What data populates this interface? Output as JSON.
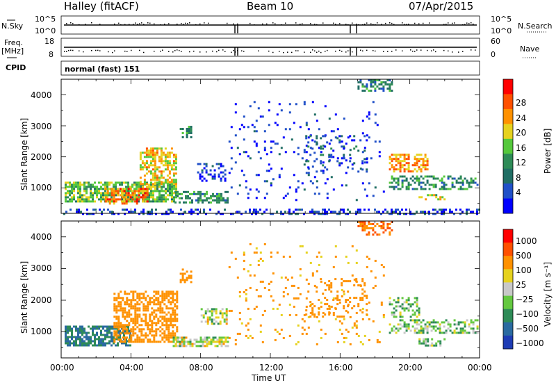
{
  "header": {
    "station": "Halley (fitACF)",
    "beam": "Beam 10",
    "date": "07/Apr/2015"
  },
  "strip_labels": {
    "nsky": "N.Sky",
    "nsky_ticks": [
      "10^5",
      "10^0"
    ],
    "nsearch": "N.Search",
    "nsearch_ticks": [
      "10^5",
      "10^0"
    ],
    "freq": "Freq.",
    "freq_unit": "[MHz]",
    "freq_ticks": [
      "18",
      "8"
    ],
    "nave": "Nave",
    "nave_ticks": [
      "60",
      "0"
    ],
    "cpid": "CPID",
    "cpid_value": "normal (fast) 151"
  },
  "chart_data": [
    {
      "type": "heatmap",
      "panel": "power",
      "ylabel": "Slant Range [km]",
      "yticks": [
        "1000",
        "2000",
        "3000",
        "4000"
      ],
      "ylim": [
        180,
        4500
      ],
      "xticks": [
        "00:00",
        "04:00",
        "08:00",
        "12:00",
        "16:00",
        "20:00",
        "00:00"
      ],
      "xlim_hours": [
        0,
        24
      ],
      "colorbar_label": "Power [dB]",
      "colorbar_ticks": [
        "4",
        "8",
        "12",
        "16",
        "20",
        "24",
        "28"
      ],
      "colorbar_colors": [
        "#0000ff",
        "#2050c8",
        "#206e64",
        "#2e8b57",
        "#55c83c",
        "#e6d21e",
        "#ff9100",
        "#ff5000",
        "#ff0000"
      ],
      "regions": [
        {
          "h0": 0.2,
          "h1": 6.6,
          "r0": 550,
          "r1": 1200,
          "v": 17,
          "d": 0.75
        },
        {
          "h0": 4.5,
          "h1": 6.6,
          "r0": 1100,
          "r1": 2300,
          "v": 22,
          "d": 0.6
        },
        {
          "h0": 2.5,
          "h1": 5.0,
          "r0": 500,
          "r1": 1000,
          "v": 27,
          "d": 0.6
        },
        {
          "h0": 6.5,
          "h1": 9.6,
          "r0": 550,
          "r1": 900,
          "v": 13,
          "d": 0.55
        },
        {
          "h0": 6.8,
          "h1": 7.4,
          "r0": 2600,
          "r1": 3000,
          "v": 14,
          "d": 0.5
        },
        {
          "h0": 7.8,
          "h1": 9.4,
          "r0": 1250,
          "r1": 1800,
          "v": 6,
          "d": 0.3
        },
        {
          "h0": 9.6,
          "h1": 18.5,
          "r0": 600,
          "r1": 3800,
          "v": 5,
          "d": 0.06
        },
        {
          "h0": 14.0,
          "h1": 17.5,
          "r0": 1500,
          "r1": 2700,
          "v": 9,
          "d": 0.15
        },
        {
          "h0": 17.0,
          "h1": 19.0,
          "r0": 4100,
          "r1": 4500,
          "v": 12,
          "d": 0.45
        },
        {
          "h0": 18.8,
          "h1": 21.0,
          "r0": 1500,
          "r1": 2100,
          "v": 25,
          "d": 0.55
        },
        {
          "h0": 18.8,
          "h1": 23.9,
          "r0": 950,
          "r1": 1400,
          "v": 13,
          "d": 0.45
        },
        {
          "h0": 20.5,
          "h1": 22.0,
          "r0": 600,
          "r1": 800,
          "v": 20,
          "d": 0.5
        },
        {
          "h0": 0.0,
          "h1": 24.0,
          "r0": 180,
          "r1": 330,
          "v": 6,
          "d": 0.35
        }
      ]
    },
    {
      "type": "heatmap",
      "panel": "velocity",
      "ylabel": "Slant Range [km]",
      "yticks": [
        "1000",
        "2000",
        "3000",
        "4000"
      ],
      "ylim": [
        180,
        4500
      ],
      "xticks": [
        "00:00",
        "04:00",
        "08:00",
        "12:00",
        "16:00",
        "20:00",
        "00:00"
      ],
      "xlim_hours": [
        0,
        24
      ],
      "xlabel": "Time UT",
      "colorbar_label": "Velocity [m s⁻¹]",
      "colorbar_ticks": [
        "1000",
        "500",
        "100",
        "25",
        "−25",
        "−100",
        "−500",
        "−1000"
      ],
      "colorbar_colors": [
        "#1e3cb4",
        "#2a6aa0",
        "#2e8b57",
        "#64c840",
        "#c8c8c8",
        "#e6d21e",
        "#ff9100",
        "#ff5000",
        "#ff0000"
      ],
      "regions": [
        {
          "h0": 0.2,
          "h1": 4.0,
          "r0": 550,
          "r1": 1200,
          "v": 500,
          "d": 0.7
        },
        {
          "h0": 3.0,
          "h1": 6.6,
          "r0": 700,
          "r1": 2300,
          "v": -300,
          "d": 0.6
        },
        {
          "h0": 6.4,
          "h1": 9.6,
          "r0": 550,
          "r1": 850,
          "v": 0,
          "d": 0.7
        },
        {
          "h0": 6.8,
          "h1": 7.4,
          "r0": 2600,
          "r1": 3000,
          "v": -300,
          "d": 0.5
        },
        {
          "h0": 8.0,
          "h1": 9.5,
          "r0": 1250,
          "r1": 1750,
          "v": 0,
          "d": 0.45
        },
        {
          "h0": 9.6,
          "h1": 18.5,
          "r0": 600,
          "r1": 3800,
          "v": -150,
          "d": 0.06
        },
        {
          "h0": 14.0,
          "h1": 17.5,
          "r0": 1500,
          "r1": 2700,
          "v": -300,
          "d": 0.18
        },
        {
          "h0": 17.0,
          "h1": 19.0,
          "r0": 4100,
          "r1": 4500,
          "v": -500,
          "d": 0.45
        },
        {
          "h0": 18.8,
          "h1": 20.5,
          "r0": 1500,
          "r1": 2100,
          "v": 60,
          "d": 0.45
        },
        {
          "h0": 18.8,
          "h1": 23.9,
          "r0": 950,
          "r1": 1400,
          "v": 60,
          "d": 0.5
        },
        {
          "h0": 20.5,
          "h1": 22.0,
          "r0": 600,
          "r1": 800,
          "v": 80,
          "d": 0.5
        }
      ]
    }
  ]
}
